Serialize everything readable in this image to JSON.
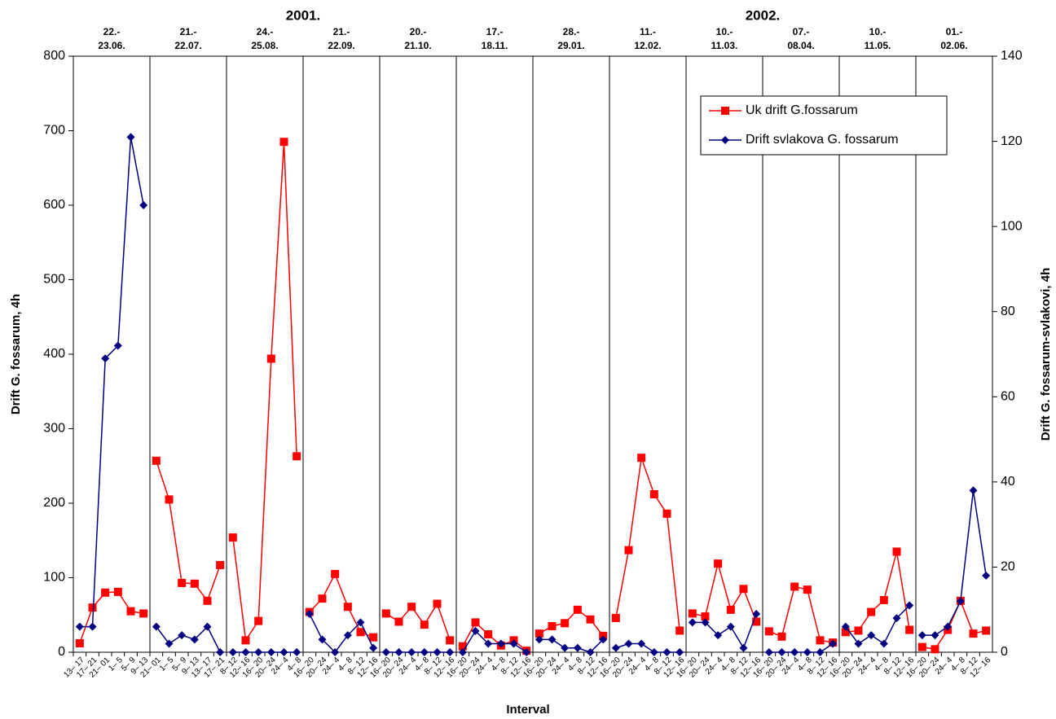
{
  "chart_data": {
    "type": "line",
    "x_label": "Interval",
    "y_label": "Drift G. fossarum, 4h",
    "y2_label": "Drift G. fossarum-svlakovi, 4h",
    "years": [
      {
        "label": "2001.",
        "after_period": 2
      },
      {
        "label": "2002.",
        "after_period": 8
      }
    ],
    "periods": [
      [
        "22.-",
        "23.06."
      ],
      [
        "21.-",
        "22.07."
      ],
      [
        "24.-",
        "25.08."
      ],
      [
        "21.-",
        "22.09."
      ],
      [
        "20.-",
        "21.10."
      ],
      [
        "17.-",
        "18.11."
      ],
      [
        "28.-",
        "29.01."
      ],
      [
        "11.-",
        "12.02."
      ],
      [
        "10.-",
        "11.03."
      ],
      [
        "07.-",
        "08.04."
      ],
      [
        "10.-",
        "11.05."
      ],
      [
        "01.-",
        "02.06."
      ]
    ],
    "categories": [
      "13– 17",
      "17– 21",
      "21– 01",
      "1– 5",
      "5– 9",
      "9– 13",
      "21– 01",
      "1– 5",
      "5– 9",
      "9– 13",
      "13– 17",
      "17– 21",
      "8– 12",
      "12– 16",
      "16– 20",
      "20– 24",
      "24– 4",
      "4– 8",
      "16– 20",
      "20– 24",
      "24– 4",
      "4– 8",
      "8– 12",
      "12– 16",
      "16– 20",
      "20– 24",
      "24– 4",
      "4– 8",
      "8– 12",
      "12– 16",
      "16– 20",
      "20– 24",
      "24– 4",
      "4– 8",
      "8– 12",
      "12– 16",
      "16– 20",
      "20– 24",
      "24– 4",
      "4– 8",
      "8– 12",
      "12– 16",
      "16– 20",
      "20– 24",
      "24– 4",
      "4– 8",
      "8– 12",
      "12– 16",
      "16– 20",
      "20– 24",
      "24– 4",
      "4– 8",
      "8– 12",
      "12– 16",
      "16– 20",
      "20– 24",
      "24– 4",
      "4– 8",
      "8– 12",
      "12– 16",
      "16– 20",
      "20– 24",
      "24– 4",
      "4– 8",
      "8– 12",
      "12– 16",
      "16– 20",
      "20– 24",
      "24– 4",
      "4– 8",
      "8– 12",
      "12– 16"
    ],
    "series": [
      {
        "name": "Uk drift G.fossarum",
        "color": "#ff0000",
        "marker": "square",
        "axis": "y",
        "values": [
          12,
          60,
          80,
          81,
          55,
          52,
          257,
          205,
          93,
          92,
          69,
          117,
          154,
          16,
          42,
          394,
          685,
          263,
          54,
          72,
          105,
          61,
          27,
          20,
          52,
          41,
          61,
          37,
          65,
          16,
          8,
          40,
          24,
          9,
          16,
          2,
          25,
          35,
          39,
          57,
          44,
          22,
          46,
          137,
          261,
          212,
          186,
          29,
          52,
          48,
          119,
          57,
          85,
          41,
          28,
          21,
          88,
          84,
          16,
          13,
          27,
          29,
          54,
          70,
          135,
          30,
          7,
          4,
          30,
          69,
          25,
          29
        ]
      },
      {
        "name": "Drift svlakova G. fossarum",
        "color": "#000080",
        "marker": "diamond",
        "axis": "y2",
        "values": [
          6,
          6,
          69,
          72,
          121,
          105,
          6,
          2,
          4,
          3,
          6,
          0,
          0,
          0,
          0,
          0,
          0,
          0,
          9,
          3,
          0,
          4,
          7,
          1,
          0,
          0,
          0,
          0,
          0,
          0,
          0,
          5,
          2,
          2,
          2,
          0,
          3,
          3,
          1,
          1,
          0,
          3,
          1,
          2,
          2,
          0,
          0,
          0,
          7,
          7,
          4,
          6,
          1,
          9,
          0,
          0,
          0,
          0,
          0,
          2,
          6,
          2,
          4,
          2,
          8,
          11,
          4,
          4,
          6,
          12,
          38,
          18
        ]
      }
    ],
    "ylim": [
      0,
      800
    ],
    "yticks": [
      0,
      100,
      200,
      300,
      400,
      500,
      600,
      700,
      800
    ],
    "y2lim": [
      0,
      140
    ],
    "y2ticks": [
      0,
      20,
      40,
      60,
      80,
      100,
      120,
      140
    ],
    "legend": "upper right"
  }
}
